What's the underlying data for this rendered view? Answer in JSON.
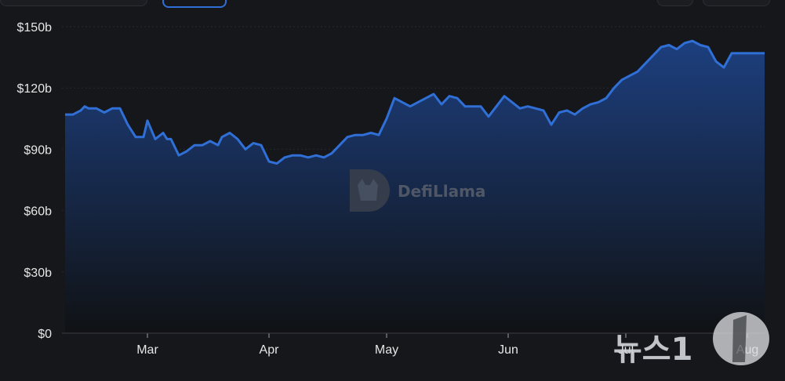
{
  "chart_data": {
    "type": "area",
    "title": "",
    "xlabel": "",
    "ylabel": "",
    "ylim": [
      0,
      150
    ],
    "y_ticks": [
      "$0",
      "$30b",
      "$60b",
      "$90b",
      "$120b",
      "$150b"
    ],
    "y_tick_values": [
      0,
      30,
      60,
      90,
      120,
      150
    ],
    "x_ticks": [
      "Mar",
      "Apr",
      "May",
      "Jun",
      "Jul",
      "Aug"
    ],
    "x_tick_values": [
      "2024-03-01",
      "2024-04-01",
      "2024-05-01",
      "2024-06-01",
      "2024-07-01",
      "2024-08-01"
    ],
    "series": [
      {
        "x": [
          "2024-02-09",
          "2024-02-11",
          "2024-02-13",
          "2024-02-14",
          "2024-02-15",
          "2024-02-17",
          "2024-02-19",
          "2024-02-21",
          "2024-02-23",
          "2024-02-25",
          "2024-02-27",
          "2024-02-29",
          "2024-03-01",
          "2024-03-03",
          "2024-03-05",
          "2024-03-06",
          "2024-03-07",
          "2024-03-09",
          "2024-03-11",
          "2024-03-13",
          "2024-03-15",
          "2024-03-17",
          "2024-03-19",
          "2024-03-20",
          "2024-03-22",
          "2024-03-24",
          "2024-03-26",
          "2024-03-28",
          "2024-03-30",
          "2024-04-01",
          "2024-04-03",
          "2024-04-05",
          "2024-04-07",
          "2024-04-09",
          "2024-04-11",
          "2024-04-13",
          "2024-04-15",
          "2024-04-17",
          "2024-04-19",
          "2024-04-21",
          "2024-04-23",
          "2024-04-25",
          "2024-04-27",
          "2024-04-29",
          "2024-05-01",
          "2024-05-03",
          "2024-05-05",
          "2024-05-07",
          "2024-05-09",
          "2024-05-11",
          "2024-05-13",
          "2024-05-15",
          "2024-05-17",
          "2024-05-19",
          "2024-05-21",
          "2024-05-23",
          "2024-05-25",
          "2024-05-27",
          "2024-05-29",
          "2024-05-31",
          "2024-06-02",
          "2024-06-04",
          "2024-06-06",
          "2024-06-08",
          "2024-06-10",
          "2024-06-12",
          "2024-06-14",
          "2024-06-16",
          "2024-06-18",
          "2024-06-20",
          "2024-06-22",
          "2024-06-24",
          "2024-06-26",
          "2024-06-28",
          "2024-06-30",
          "2024-07-02",
          "2024-07-04",
          "2024-07-06",
          "2024-07-08",
          "2024-07-10",
          "2024-07-12",
          "2024-07-14",
          "2024-07-16",
          "2024-07-18",
          "2024-07-20",
          "2024-07-22",
          "2024-07-24",
          "2024-07-26",
          "2024-07-28",
          "2024-07-30",
          "2024-08-01",
          "2024-08-03",
          "2024-08-05",
          "2024-08-06",
          "2024-08-07"
        ],
        "values": [
          107,
          107,
          109,
          111,
          110,
          110,
          108,
          110,
          110,
          102,
          96,
          96,
          104,
          95,
          98,
          95,
          95,
          87,
          89,
          92,
          92,
          94,
          92,
          96,
          98,
          95,
          90,
          93,
          92,
          84,
          83,
          86,
          87,
          87,
          86,
          87,
          86,
          88,
          92,
          96,
          97,
          97,
          98,
          97,
          105,
          115,
          113,
          111,
          113,
          115,
          117,
          112,
          116,
          115,
          111,
          111,
          111,
          106,
          111,
          116,
          113,
          110,
          111,
          110,
          109,
          102,
          108,
          109,
          107,
          110,
          112,
          113,
          115,
          120,
          124,
          126,
          128,
          132,
          136,
          140,
          141,
          139,
          142,
          143,
          141,
          140,
          133,
          130,
          137,
          137,
          137,
          137,
          137,
          137,
          137
        ]
      }
    ],
    "colors": {
      "line": "#2f6fd6",
      "area_top": "#1d3f7f",
      "area_bottom": "#101214",
      "grid": "#262930",
      "background": "#16171b"
    },
    "grid": true,
    "legend": "none"
  },
  "watermark": {
    "brand": "DefiLlama",
    "icon": "llama-logo-icon"
  },
  "overlay_logo": {
    "text": "뉴스1",
    "icon": "news1-logo-icon"
  }
}
